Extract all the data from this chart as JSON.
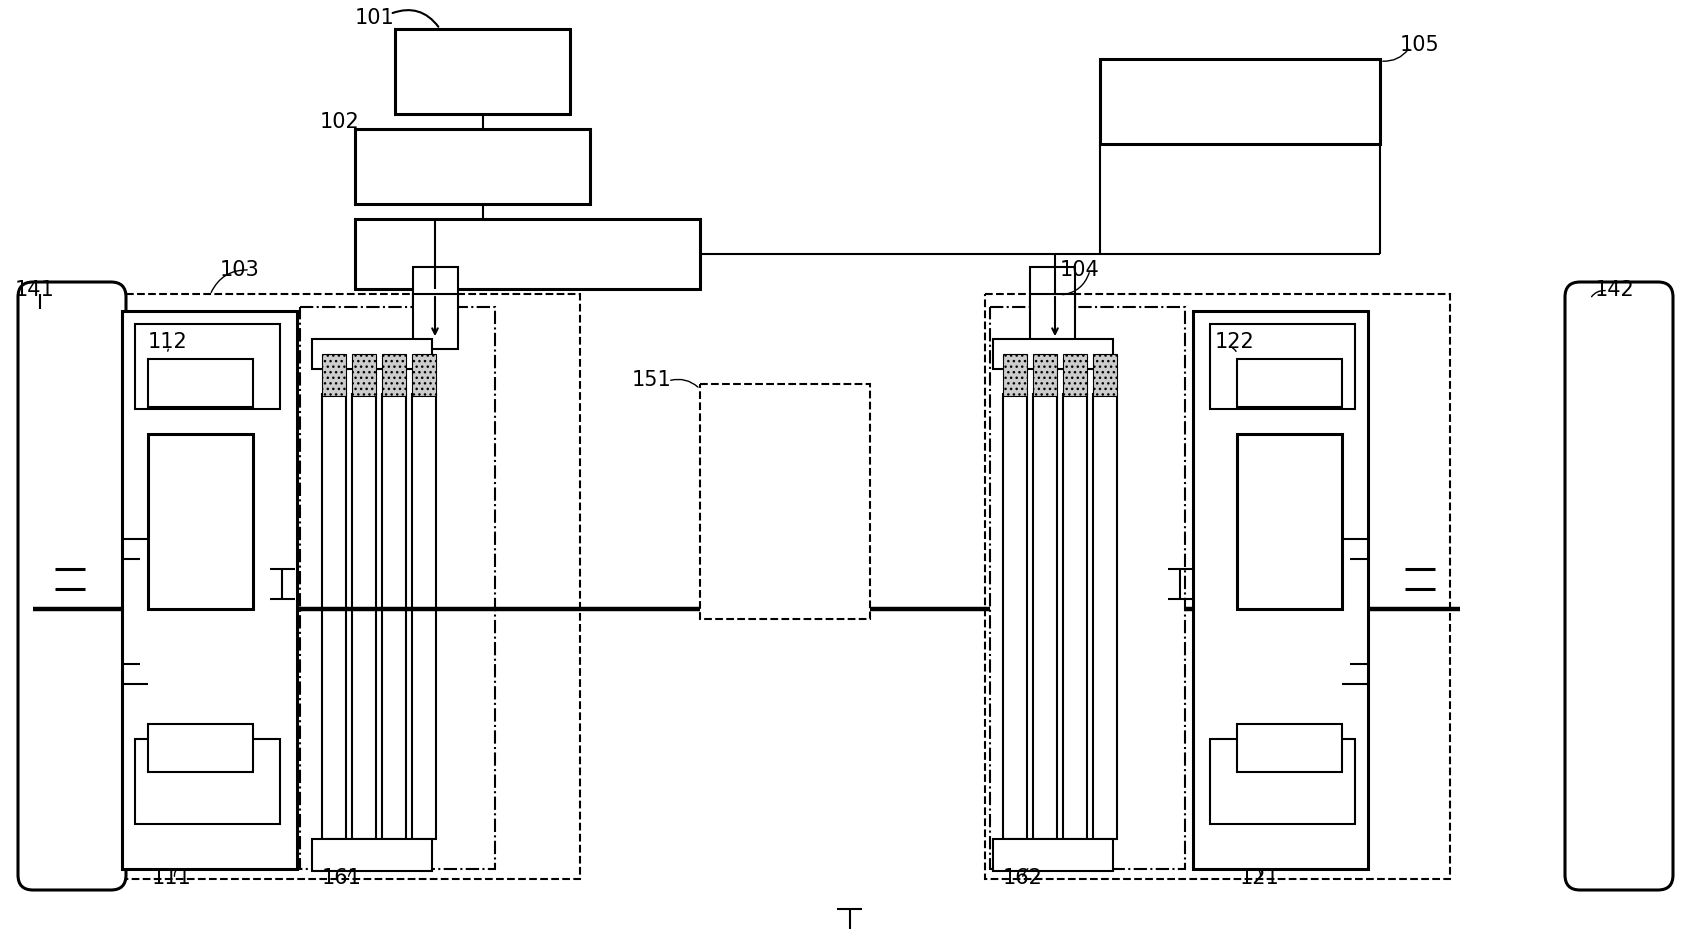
{
  "bg_color": "#ffffff",
  "lc": "#000000",
  "lw": 1.5,
  "tlw": 2.2,
  "fig_w": 16.91,
  "fig_h": 9.37,
  "dpi": 100
}
